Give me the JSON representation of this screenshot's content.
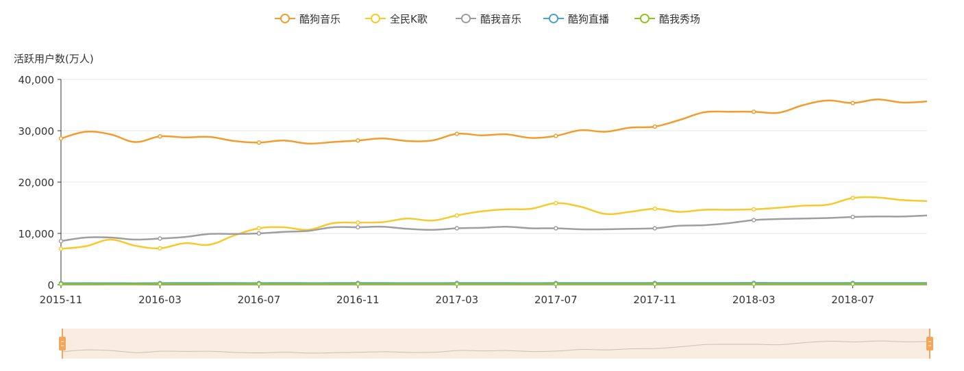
{
  "chart_data": {
    "type": "line",
    "ylabel": "活跃用户数(万人)",
    "xlabel": "",
    "ylim": [
      0,
      40000
    ],
    "yticks": [
      0,
      10000,
      20000,
      30000,
      40000
    ],
    "ytick_labels": [
      "0",
      "10,000",
      "20,000",
      "30,000",
      "40,000"
    ],
    "x": [
      "2015-11",
      "2015-12",
      "2016-01",
      "2016-02",
      "2016-03",
      "2016-04",
      "2016-05",
      "2016-06",
      "2016-07",
      "2016-08",
      "2016-09",
      "2016-10",
      "2016-11",
      "2016-12",
      "2017-01",
      "2017-02",
      "2017-03",
      "2017-04",
      "2017-05",
      "2017-06",
      "2017-07",
      "2017-08",
      "2017-09",
      "2017-10",
      "2017-11",
      "2017-12",
      "2018-01",
      "2018-02",
      "2018-03",
      "2018-04",
      "2018-05",
      "2018-06",
      "2018-07",
      "2018-08",
      "2018-09",
      "2018-10"
    ],
    "xtick_labels": [
      "2015-11",
      "2016-03",
      "2016-07",
      "2016-11",
      "2017-03",
      "2017-07",
      "2017-11",
      "2018-03",
      "2018-07"
    ],
    "grid": true,
    "legend_position": "top-center",
    "series": [
      {
        "name": "酷狗音乐",
        "color": "#f39c2c",
        "values": [
          28500,
          29800,
          29300,
          27800,
          28900,
          28700,
          28800,
          28000,
          27700,
          28100,
          27500,
          27800,
          28100,
          28500,
          28000,
          28100,
          29400,
          29100,
          29300,
          28600,
          29000,
          30100,
          29800,
          30600,
          30800,
          32100,
          33600,
          33700,
          33700,
          33500,
          35000,
          35900,
          35400,
          36100,
          35500,
          35700
        ]
      },
      {
        "name": "全民K歌",
        "color": "#f7c92a",
        "values": [
          7000,
          7500,
          8800,
          7600,
          7100,
          8100,
          7800,
          9600,
          11000,
          11200,
          10700,
          12000,
          12100,
          12200,
          12900,
          12500,
          13500,
          14300,
          14700,
          14800,
          15900,
          15200,
          13800,
          14200,
          14800,
          14200,
          14600,
          14600,
          14700,
          15000,
          15400,
          15600,
          16900,
          17000,
          16500,
          16300
        ]
      },
      {
        "name": "酷我音乐",
        "color": "#9e9e9e",
        "values": [
          8500,
          9200,
          9200,
          8800,
          9000,
          9300,
          9900,
          9900,
          10000,
          10300,
          10500,
          11200,
          11200,
          11300,
          10900,
          10700,
          11000,
          11100,
          11300,
          11000,
          11000,
          10800,
          10800,
          10900,
          11000,
          11500,
          11600,
          12000,
          12600,
          12800,
          12900,
          13000,
          13200,
          13300,
          13300,
          13500
        ]
      },
      {
        "name": "酷狗直播",
        "color": "#4da3c9",
        "values": [
          300,
          310,
          300,
          290,
          320,
          330,
          340,
          330,
          320,
          330,
          320,
          330,
          330,
          330,
          320,
          320,
          330,
          330,
          330,
          320,
          330,
          330,
          330,
          330,
          330,
          340,
          340,
          340,
          350,
          340,
          340,
          340,
          340,
          340,
          340,
          340
        ]
      },
      {
        "name": "酷我秀场",
        "color": "#8fc31f",
        "values": [
          150,
          150,
          140,
          140,
          160,
          160,
          160,
          150,
          150,
          150,
          150,
          150,
          150,
          150,
          150,
          150,
          150,
          150,
          150,
          150,
          150,
          150,
          150,
          150,
          150,
          150,
          150,
          150,
          150,
          150,
          150,
          150,
          150,
          150,
          150,
          150
        ]
      }
    ],
    "datazoom": {
      "type": "slider",
      "start_percent": 0,
      "end_percent": 100,
      "fill_color": "#f9ece0",
      "handle_color": "#f4a55a"
    }
  }
}
